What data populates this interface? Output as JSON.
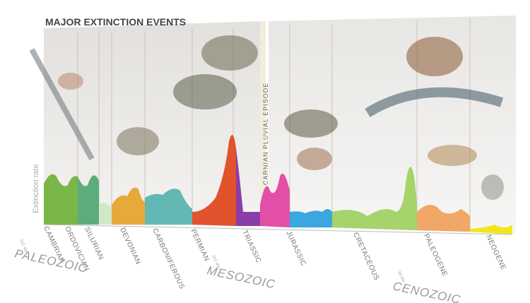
{
  "title": "MAJOR EXTINCTION EVENTS",
  "y_label": "Extinction rate",
  "annotation": "CARNIAN PLUVIAL EPISODE",
  "periods": [
    "CAMBRIAN",
    "ORDOVICIAN",
    "SILURIAN",
    "DEVONIAN",
    "CARBONIFEROUS",
    "PERMIAN",
    "TRIASSIC",
    "JURASSIC",
    "CRETACEOUS",
    "PALEOGENE",
    "NEOGENE"
  ],
  "eras": [
    {
      "name": "PALEOZOIC",
      "age": "541 Ma"
    },
    {
      "name": "MESOZOIC",
      "age": "252 Ma"
    },
    {
      "name": "CENOZOIC",
      "age": "66 Ma"
    }
  ]
}
